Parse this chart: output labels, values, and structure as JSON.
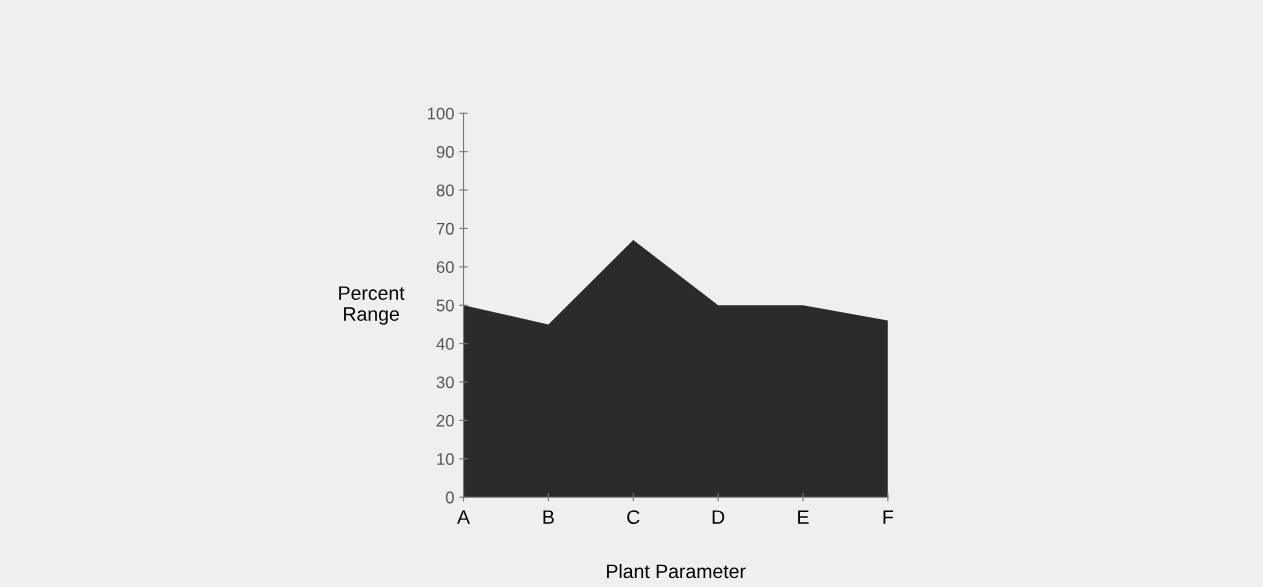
{
  "chart_data": {
    "type": "area",
    "xlabel": "Plant Parameter",
    "ylabel": "Percent\nRange",
    "categories": [
      "A",
      "B",
      "C",
      "D",
      "E",
      "F"
    ],
    "series": [
      {
        "color": "#2b2b2b",
        "values": [
          50,
          45,
          67,
          50,
          50,
          46
        ]
      }
    ],
    "ylim": [
      0,
      100
    ],
    "yticks": [
      0,
      10,
      20,
      30,
      40,
      50,
      60,
      70,
      80,
      90,
      100
    ],
    "grid": false
  }
}
